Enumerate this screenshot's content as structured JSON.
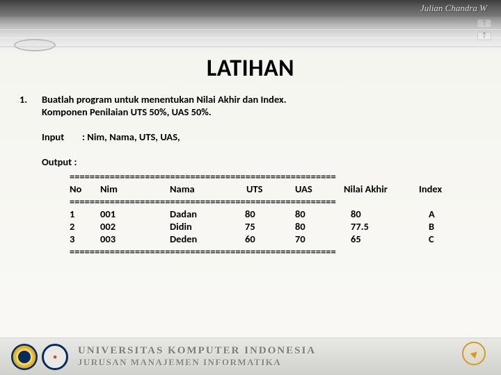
{
  "author": "Julian Chandra W",
  "title": "LATIHAN",
  "item_number": "1.",
  "instruction_line1": "Buatlah program untuk menentukan Nilai Akhir dan Index.",
  "instruction_line2": "Komponen Penilaian   UTS 50%, UAS 50%.",
  "input_label": "Input",
  "input_value": ": Nim, Nama, UTS, UAS,",
  "output_label": "Output :",
  "separator": "=====================================================",
  "headers": {
    "no": "No",
    "nim": "Nim",
    "nama": "Nama",
    "uts": "UTS",
    "uas": "UAS",
    "na": "Nilai Akhir",
    "idx": "Index"
  },
  "rows": [
    {
      "no": "1",
      "nim": "001",
      "nama": "Dadan",
      "uts": "80",
      "uas": "80",
      "na": "80",
      "idx": "A"
    },
    {
      "no": "2",
      "nim": "002",
      "nama": "Didin",
      "uts": "75",
      "uas": "80",
      "na": "77.5",
      "idx": "B"
    },
    {
      "no": "3",
      "nim": "003",
      "nama": "Deden",
      "uts": "60",
      "uas": "70",
      "na": "65",
      "idx": "C"
    }
  ],
  "footer": {
    "line1": "UNIVERSITAS KOMPUTER INDONESIA",
    "line2": "JURUSAN MANAJEMEN INFORMATIKA"
  }
}
